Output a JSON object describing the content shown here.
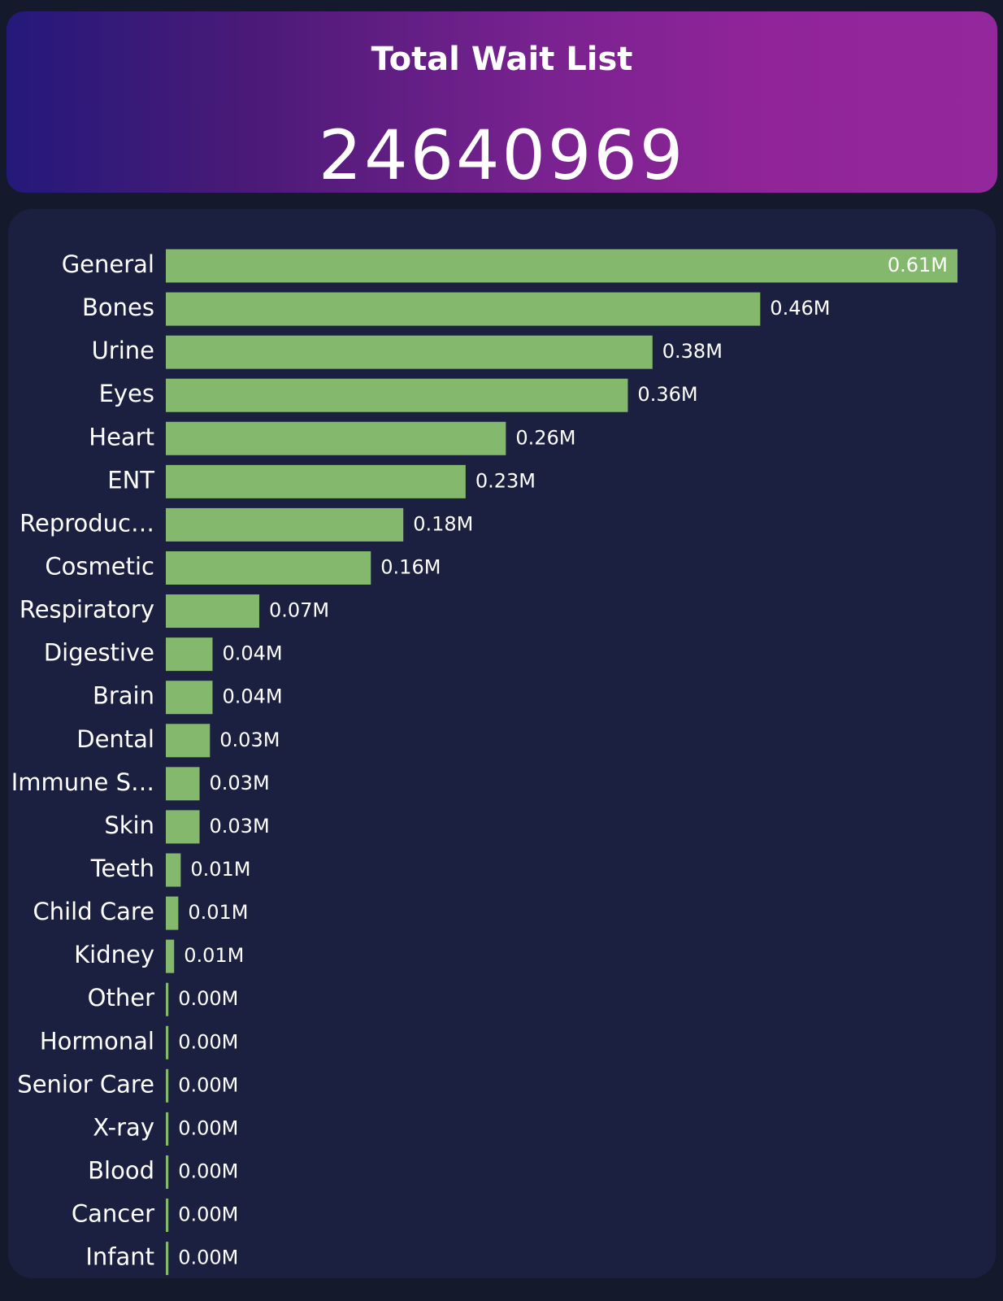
{
  "kpi": {
    "title": "Total Wait List",
    "value": 24640969
  },
  "chart_data": {
    "type": "bar",
    "orientation": "horizontal",
    "color": "#84b96d",
    "categories": [
      "General",
      "Bones",
      "Urine",
      "Eyes",
      "Heart",
      "ENT",
      "Reproduc…",
      "Cosmetic",
      "Respiratory",
      "Digestive",
      "Brain",
      "Dental",
      "Immune S…",
      "Skin",
      "Teeth",
      "Child Care",
      "Kidney",
      "Other",
      "Hormonal",
      "Senior Care",
      "X-ray",
      "Blood",
      "Cancer",
      "Infant"
    ],
    "values": [
      0.61,
      0.458,
      0.375,
      0.356,
      0.262,
      0.231,
      0.183,
      0.158,
      0.072,
      0.036,
      0.036,
      0.034,
      0.026,
      0.026,
      0.0115,
      0.0096,
      0.0064,
      0.002,
      0.002,
      0.002,
      0.002,
      0.002,
      0.002,
      0.002
    ],
    "value_labels": [
      "0.61M",
      "0.46M",
      "0.38M",
      "0.36M",
      "0.26M",
      "0.23M",
      "0.18M",
      "0.16M",
      "0.07M",
      "0.04M",
      "0.04M",
      "0.03M",
      "0.03M",
      "0.03M",
      "0.01M",
      "0.01M",
      "0.01M",
      "0.00M",
      "0.00M",
      "0.00M",
      "0.00M",
      "0.00M",
      "0.00M",
      "0.00M"
    ]
  }
}
